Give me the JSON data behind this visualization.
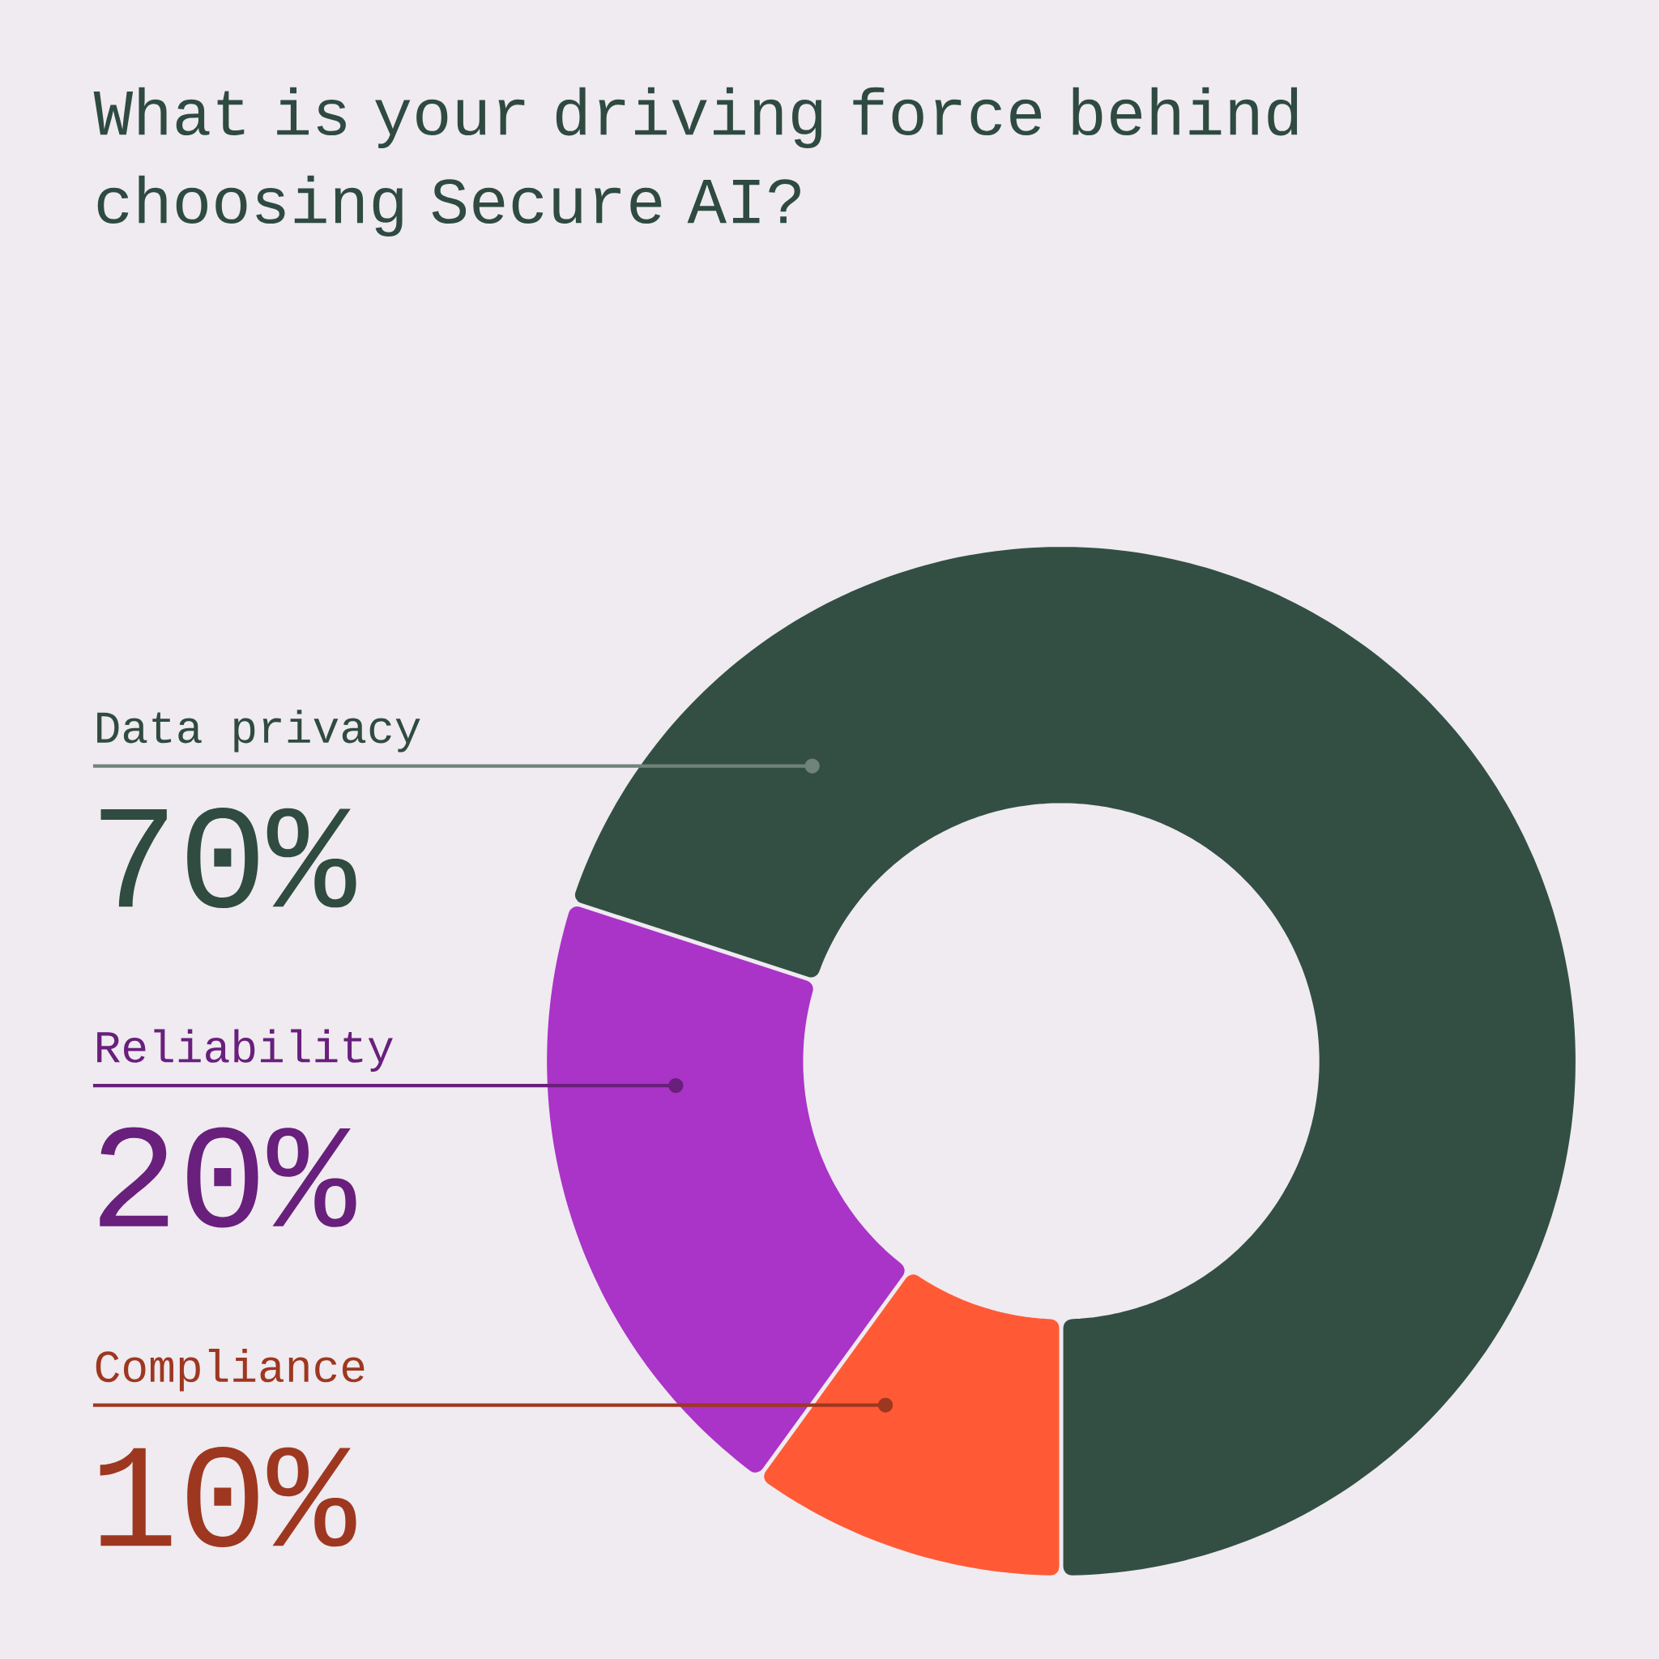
{
  "chart_data": {
    "type": "donut",
    "title": "What is your driving force behind choosing Secure AI?",
    "categories": [
      "Data privacy",
      "Reliability",
      "Compliance"
    ],
    "values": [
      70,
      20,
      10
    ],
    "colors": [
      "#334f43",
      "#aa33c8",
      "#ff5a35"
    ],
    "value_labels": [
      "70%",
      "20%",
      "10%"
    ]
  }
}
